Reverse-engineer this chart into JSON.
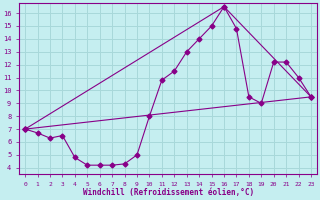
{
  "title": "",
  "xlabel": "Windchill (Refroidissement éolien,°C)",
  "ylabel": "",
  "xlim": [
    -0.5,
    23.5
  ],
  "ylim": [
    3.5,
    16.8
  ],
  "xticks": [
    0,
    1,
    2,
    3,
    4,
    5,
    6,
    7,
    8,
    9,
    10,
    11,
    12,
    13,
    14,
    15,
    16,
    17,
    18,
    19,
    20,
    21,
    22,
    23
  ],
  "yticks": [
    4,
    5,
    6,
    7,
    8,
    9,
    10,
    11,
    12,
    13,
    14,
    15,
    16
  ],
  "bg_color": "#c5eef0",
  "line_color": "#880088",
  "grid_color": "#a8d8da",
  "curve1_x": [
    0,
    1,
    2,
    3,
    4,
    5,
    6,
    7,
    8,
    9,
    10,
    11,
    12,
    13,
    14,
    15,
    16,
    17,
    18,
    19,
    20,
    21,
    22,
    23
  ],
  "curve1_y": [
    7.0,
    6.7,
    6.3,
    6.5,
    4.8,
    4.2,
    4.2,
    4.2,
    4.3,
    5.0,
    8.0,
    10.8,
    11.5,
    13.0,
    14.0,
    15.0,
    16.5,
    14.8,
    9.5,
    9.0,
    12.2,
    12.2,
    11.0,
    9.5
  ],
  "curve2_x": [
    0,
    23
  ],
  "curve2_y": [
    7.0,
    9.5
  ],
  "curve3_x": [
    0,
    16,
    23
  ],
  "curve3_y": [
    7.0,
    16.5,
    9.5
  ]
}
